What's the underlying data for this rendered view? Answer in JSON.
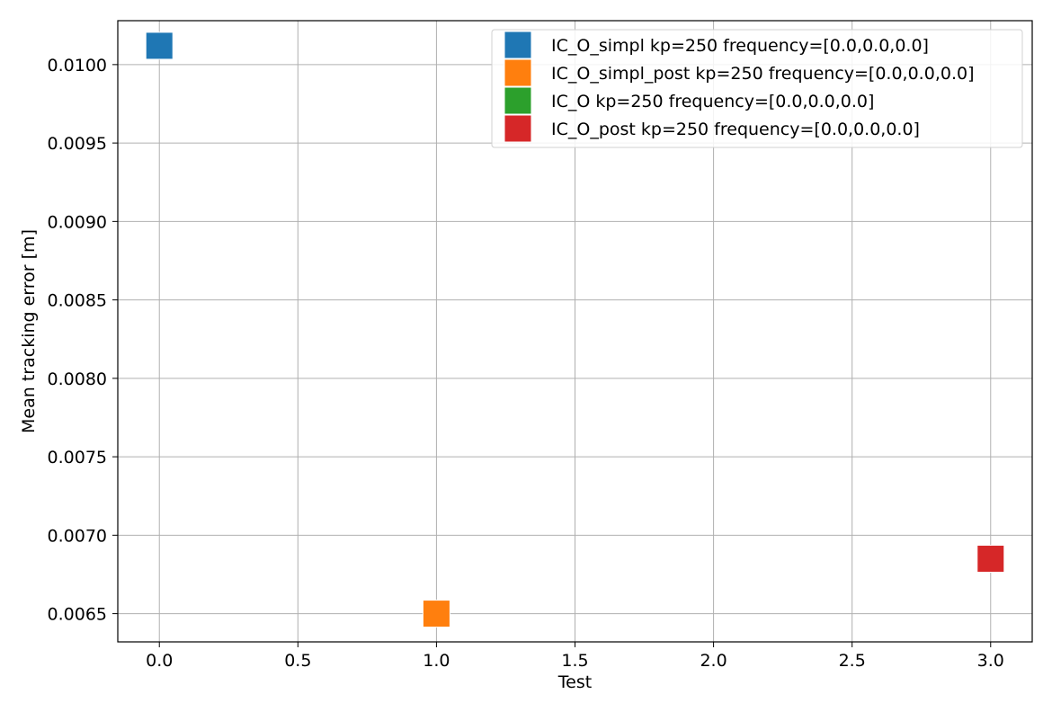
{
  "chart_data": {
    "type": "scatter",
    "xlabel": "Test",
    "ylabel": "Mean tracking error [m]",
    "xlim": [
      -0.15,
      3.15
    ],
    "ylim": [
      0.00632,
      0.01028
    ],
    "xticks": [
      0.0,
      0.5,
      1.0,
      1.5,
      2.0,
      2.5,
      3.0
    ],
    "xtick_labels": [
      "0.0",
      "0.5",
      "1.0",
      "1.5",
      "2.0",
      "2.5",
      "3.0"
    ],
    "yticks": [
      0.0065,
      0.007,
      0.0075,
      0.008,
      0.0085,
      0.009,
      0.0095,
      0.01
    ],
    "ytick_labels": [
      "0.0065",
      "0.0070",
      "0.0075",
      "0.0080",
      "0.0085",
      "0.0090",
      "0.0095",
      "0.0100"
    ],
    "grid": true,
    "legend_position": "top-right",
    "marker": "square",
    "series": [
      {
        "name": "IC_O_simpl kp=250 frequency=[0.0,0.0,0.0]",
        "color": "#1f77b4",
        "x": [
          0
        ],
        "y": [
          0.01012
        ]
      },
      {
        "name": "IC_O_simpl_post kp=250 frequency=[0.0,0.0,0.0]",
        "color": "#ff7f0e",
        "x": [
          1
        ],
        "y": [
          0.0065
        ]
      },
      {
        "name": "IC_O kp=250 frequency=[0.0,0.0,0.0]",
        "color": "#2ca02c",
        "x": [],
        "y": []
      },
      {
        "name": "IC_O_post kp=250 frequency=[0.0,0.0,0.0]",
        "color": "#d62728",
        "x": [
          3
        ],
        "y": [
          0.00685
        ]
      }
    ]
  }
}
